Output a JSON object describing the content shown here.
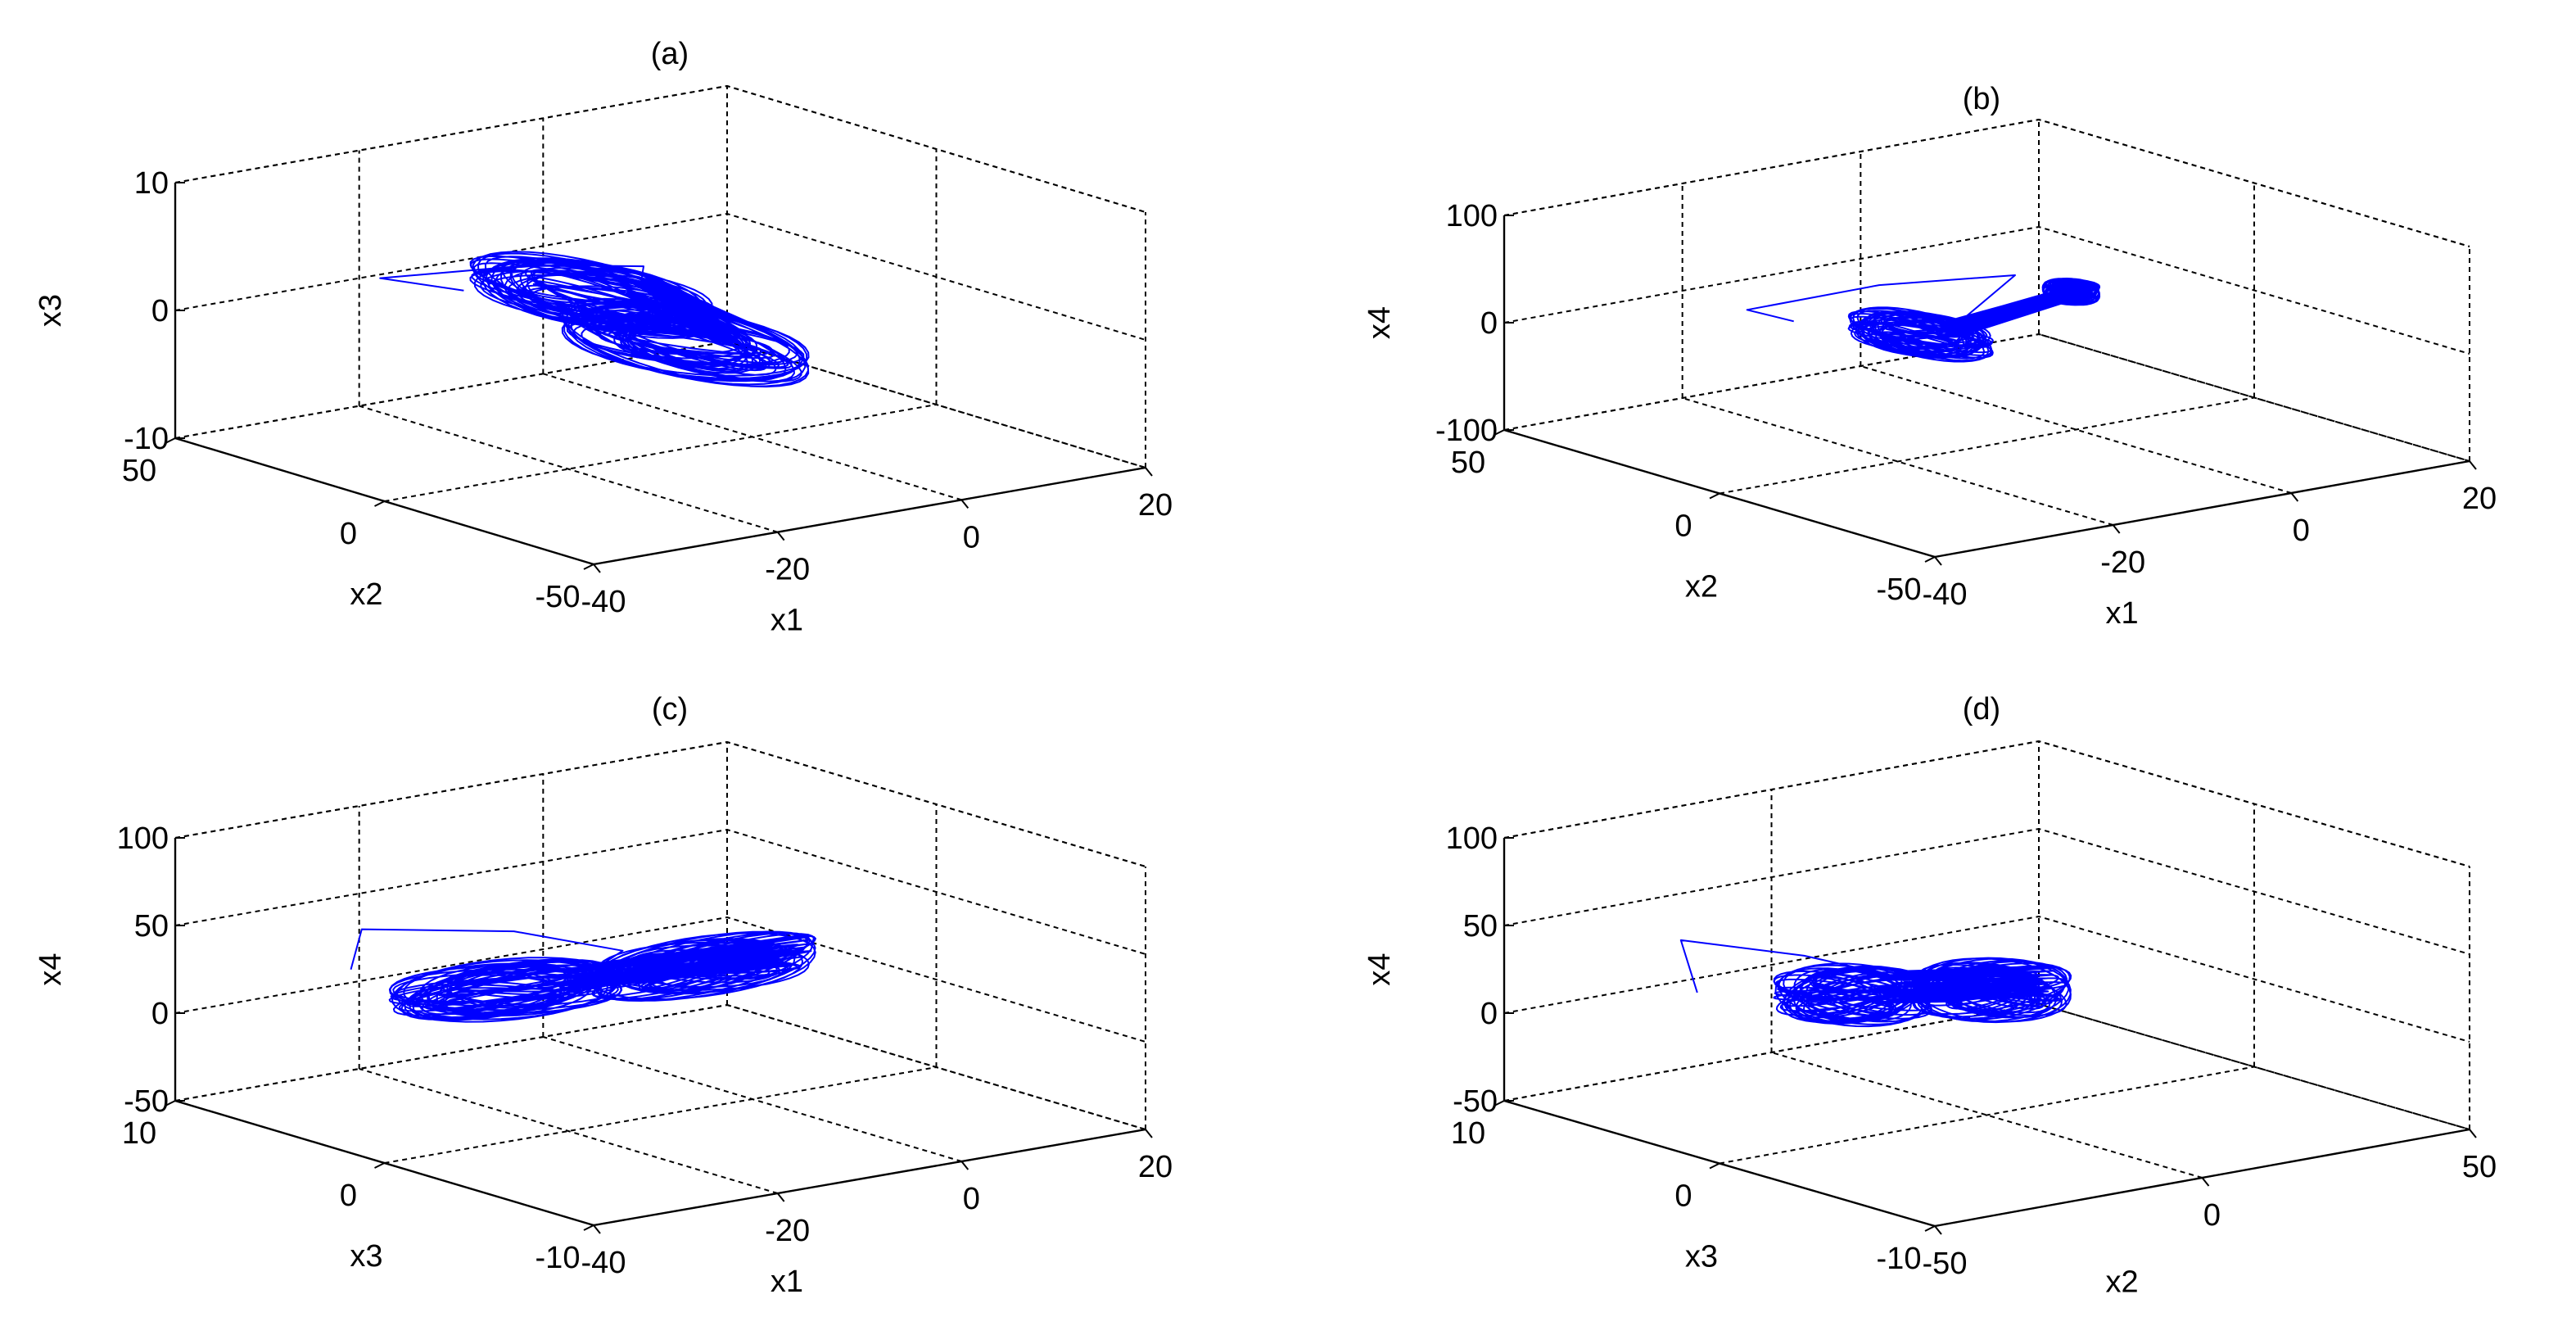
{
  "figure": {
    "background": "#ffffff",
    "axis_color": "#000000",
    "trajectory_color": "#0000ff"
  },
  "chart_data": [
    {
      "type": "line",
      "view": "3d",
      "title": "(a)",
      "grid": true,
      "xlabel": "x1",
      "ylabel": "x2",
      "zlabel": "x3",
      "xlim": [
        -40,
        20
      ],
      "ylim": [
        -50,
        50
      ],
      "zlim": [
        -10,
        10
      ],
      "x_ticks": [
        "-40",
        "-20",
        "0",
        "20"
      ],
      "y_ticks": [
        "-50",
        "0",
        "50"
      ],
      "z_ticks": [
        "-10",
        "0",
        "10"
      ],
      "series": [
        {
          "attractor": {
            "center": [
              -10,
              5,
              0
            ],
            "lobes": [
              {
                "dx": -5,
                "dy": 0,
                "dz": 2.5,
                "rx": 6,
                "ry": 22,
                "rz": 0.8
              },
              {
                "dx": 5,
                "dy": 0,
                "dz": -2.5,
                "rx": 6,
                "ry": 22,
                "rz": 0.8
              }
            ],
            "transient": [
              [
                -20,
                25,
                1.5
              ],
              [
                -20,
                45,
                0.5
              ],
              [
                -8,
                35,
                1
              ],
              [
                -5,
                15,
                2.5
              ]
            ]
          }
        }
      ]
    },
    {
      "type": "line",
      "view": "3d",
      "title": "(b)",
      "grid": true,
      "xlabel": "x1",
      "ylabel": "x2",
      "zlabel": "x4",
      "xlim": [
        -40,
        20
      ],
      "ylim": [
        -50,
        50
      ],
      "zlim": [
        -100,
        100
      ],
      "x_ticks": [
        "-40",
        "-20",
        "0",
        "20"
      ],
      "y_ticks": [
        "-50",
        "0",
        "50"
      ],
      "z_ticks": [
        "-100",
        "0",
        "100"
      ],
      "series": [
        {
          "attractor": {
            "center": [
              -12,
              5,
              0
            ],
            "lobes": [
              {
                "dx": -3,
                "dy": 0,
                "dz": 5,
                "rx": 4,
                "ry": 12,
                "rz": 8
              },
              {
                "dx": 10,
                "dy": -8,
                "dz": 35,
                "rx": 2,
                "ry": 4,
                "rz": 6
              }
            ],
            "transient": [
              [
                -22,
                20,
                10
              ],
              [
                -20,
                35,
                0
              ],
              [
                -10,
                25,
                20
              ],
              [
                -2,
                10,
                35
              ]
            ]
          }
        }
      ]
    },
    {
      "type": "line",
      "view": "3d",
      "title": "(c)",
      "grid": true,
      "xlabel": "x1",
      "ylabel": "x3",
      "zlabel": "x4",
      "xlim": [
        -40,
        20
      ],
      "ylim": [
        -10,
        10
      ],
      "zlim": [
        -50,
        100
      ],
      "x_ticks": [
        "-40",
        "-20",
        "0",
        "20"
      ],
      "y_ticks": [
        "-10",
        "0",
        "10"
      ],
      "z_ticks": [
        "-50",
        "0",
        "50",
        "100"
      ],
      "series": [
        {
          "attractor": {
            "center": [
              -15,
              3,
              15
            ],
            "lobes": [
              {
                "dx": -5,
                "dy": 0,
                "dz": 5,
                "rx": 10,
                "ry": 2,
                "rz": 6
              },
              {
                "dx": 12,
                "dy": -2,
                "dz": 10,
                "rx": 10,
                "ry": 1.5,
                "rz": 8
              }
            ],
            "transient": [
              [
                -30,
                6,
                30
              ],
              [
                -22,
                9,
                35
              ],
              [
                -10,
                7,
                30
              ],
              [
                -5,
                4,
                25
              ]
            ]
          }
        }
      ]
    },
    {
      "type": "line",
      "view": "3d",
      "title": "(d)",
      "grid": true,
      "xlabel": "x2",
      "ylabel": "x3",
      "zlabel": "x4",
      "xlim": [
        -50,
        50
      ],
      "ylim": [
        -10,
        10
      ],
      "zlim": [
        -50,
        100
      ],
      "x_ticks": [
        "-50",
        "0",
        "50"
      ],
      "y_ticks": [
        "-10",
        "0",
        "10"
      ],
      "z_ticks": [
        "-50",
        "0",
        "50",
        "100"
      ],
      "series": [
        {
          "attractor": {
            "center": [
              -5,
              2,
              10
            ],
            "lobes": [
              {
                "dx": -8,
                "dy": 1,
                "dz": 5,
                "rx": 10,
                "ry": 2,
                "rz": 8
              },
              {
                "dx": 10,
                "dy": -1,
                "dz": 5,
                "rx": 10,
                "ry": 2,
                "rz": 8
              }
            ],
            "transient": [
              [
                -30,
                6,
                15
              ],
              [
                -25,
                8,
                35
              ],
              [
                -10,
                6,
                25
              ],
              [
                0,
                3,
                15
              ]
            ]
          }
        }
      ]
    }
  ]
}
